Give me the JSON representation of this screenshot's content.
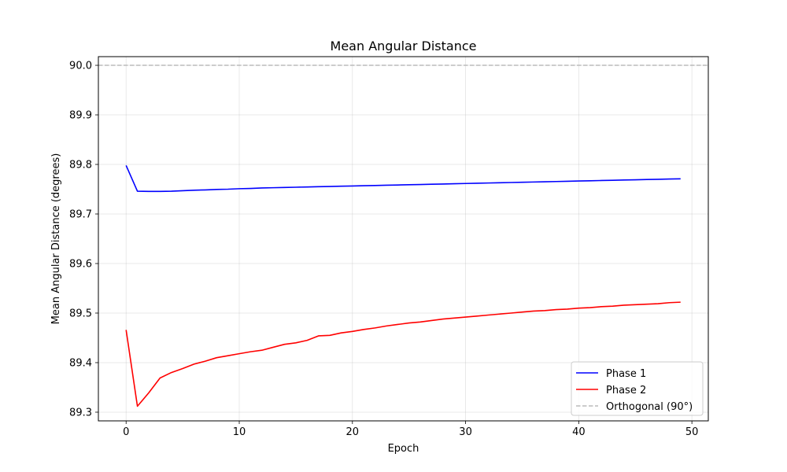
{
  "chart_data": {
    "type": "line",
    "title": "Mean Angular Distance",
    "xlabel": "Epoch",
    "ylabel": "Mean Angular Distance (degrees)",
    "xlim": [
      -2.45,
      51.45
    ],
    "ylim": [
      89.2825,
      90.0175
    ],
    "xticks": [
      0,
      10,
      20,
      30,
      40,
      50
    ],
    "xtick_labels": [
      "0",
      "10",
      "20",
      "30",
      "40",
      "50"
    ],
    "yticks": [
      89.3,
      89.4,
      89.5,
      89.6,
      89.7,
      89.8,
      89.9,
      90.0
    ],
    "ytick_labels": [
      "89.3",
      "89.4",
      "89.5",
      "89.6",
      "89.7",
      "89.8",
      "89.9",
      "90.0"
    ],
    "grid": true,
    "legend_position": "lower-right",
    "x": [
      0,
      1,
      2,
      3,
      4,
      5,
      6,
      7,
      8,
      9,
      10,
      11,
      12,
      13,
      14,
      15,
      16,
      17,
      18,
      19,
      20,
      21,
      22,
      23,
      24,
      25,
      26,
      27,
      28,
      29,
      30,
      31,
      32,
      33,
      34,
      35,
      36,
      37,
      38,
      39,
      40,
      41,
      42,
      43,
      44,
      45,
      46,
      47,
      48,
      49
    ],
    "series": [
      {
        "name": "Phase 1",
        "color": "#0000ff",
        "style": "solid",
        "values": [
          89.798,
          89.746,
          89.7455,
          89.7455,
          89.746,
          89.747,
          89.748,
          89.7485,
          89.7495,
          89.75,
          89.751,
          89.7515,
          89.7525,
          89.753,
          89.7535,
          89.754,
          89.7545,
          89.755,
          89.7555,
          89.756,
          89.7565,
          89.757,
          89.7575,
          89.758,
          89.7585,
          89.759,
          89.7595,
          89.76,
          89.7605,
          89.761,
          89.7615,
          89.762,
          89.7625,
          89.763,
          89.7635,
          89.764,
          89.7645,
          89.765,
          89.7655,
          89.766,
          89.7665,
          89.767,
          89.7675,
          89.768,
          89.7685,
          89.769,
          89.7695,
          89.77,
          89.7705,
          89.771
        ]
      },
      {
        "name": "Phase 2",
        "color": "#ff0000",
        "style": "solid",
        "values": [
          89.466,
          89.312,
          89.339,
          89.369,
          89.38,
          89.388,
          89.397,
          89.403,
          89.41,
          89.414,
          89.418,
          89.422,
          89.425,
          89.431,
          89.437,
          89.44,
          89.445,
          89.454,
          89.455,
          89.46,
          89.463,
          89.467,
          89.47,
          89.474,
          89.477,
          89.48,
          89.482,
          89.485,
          89.488,
          89.49,
          89.492,
          89.494,
          89.496,
          89.498,
          89.5,
          89.502,
          89.504,
          89.505,
          89.507,
          89.508,
          89.51,
          89.511,
          89.513,
          89.514,
          89.516,
          89.517,
          89.518,
          89.519,
          89.521,
          89.522
        ]
      }
    ],
    "reference_line": {
      "name": "Orthogonal (90°)",
      "y": 90.0,
      "color": "#bbbbbb",
      "style": "dashed"
    }
  }
}
